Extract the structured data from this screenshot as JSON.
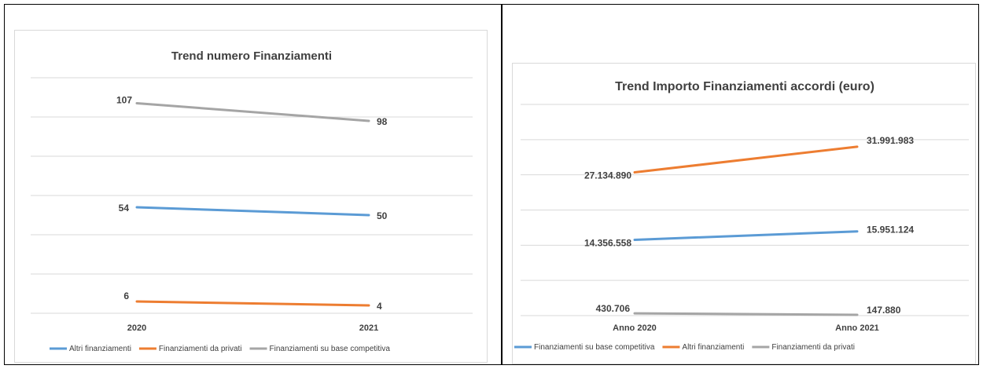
{
  "chart_data": [
    {
      "type": "line",
      "title": "Trend numero Finanziamenti",
      "categories": [
        "2020",
        "2021"
      ],
      "ylim": [
        0,
        120
      ],
      "grid": true,
      "legend_position": "bottom",
      "series": [
        {
          "name": "Altri finanziamenti",
          "color": "#5b9bd5",
          "values": [
            54,
            50
          ],
          "labels": [
            "54",
            "50"
          ]
        },
        {
          "name": "Finanziamenti da privati",
          "color": "#ed7d31",
          "values": [
            6,
            4
          ],
          "labels": [
            "6",
            "4"
          ]
        },
        {
          "name": "Finanziamenti su base competitiva",
          "color": "#a5a5a5",
          "values": [
            107,
            98
          ],
          "labels": [
            "107",
            "98"
          ]
        }
      ]
    },
    {
      "type": "line",
      "title": "Trend Importo Finanziamenti accordi (euro)",
      "categories": [
        "Anno 2020",
        "Anno 2021"
      ],
      "ylim": [
        0,
        40000000
      ],
      "grid": true,
      "legend_position": "bottom",
      "series": [
        {
          "name": "Finanziamenti su base competitiva",
          "color": "#5b9bd5",
          "values": [
            14356558,
            15951124
          ],
          "labels": [
            "14.356.558",
            "15.951.124"
          ]
        },
        {
          "name": "Altri finanziamenti",
          "color": "#ed7d31",
          "values": [
            27134890,
            31991983
          ],
          "labels": [
            "27.134.890",
            "31.991.983"
          ]
        },
        {
          "name": "Finanziamenti da privati",
          "color": "#a5a5a5",
          "values": [
            430706,
            147880
          ],
          "labels": [
            "430.706",
            "147.880"
          ]
        }
      ]
    }
  ]
}
